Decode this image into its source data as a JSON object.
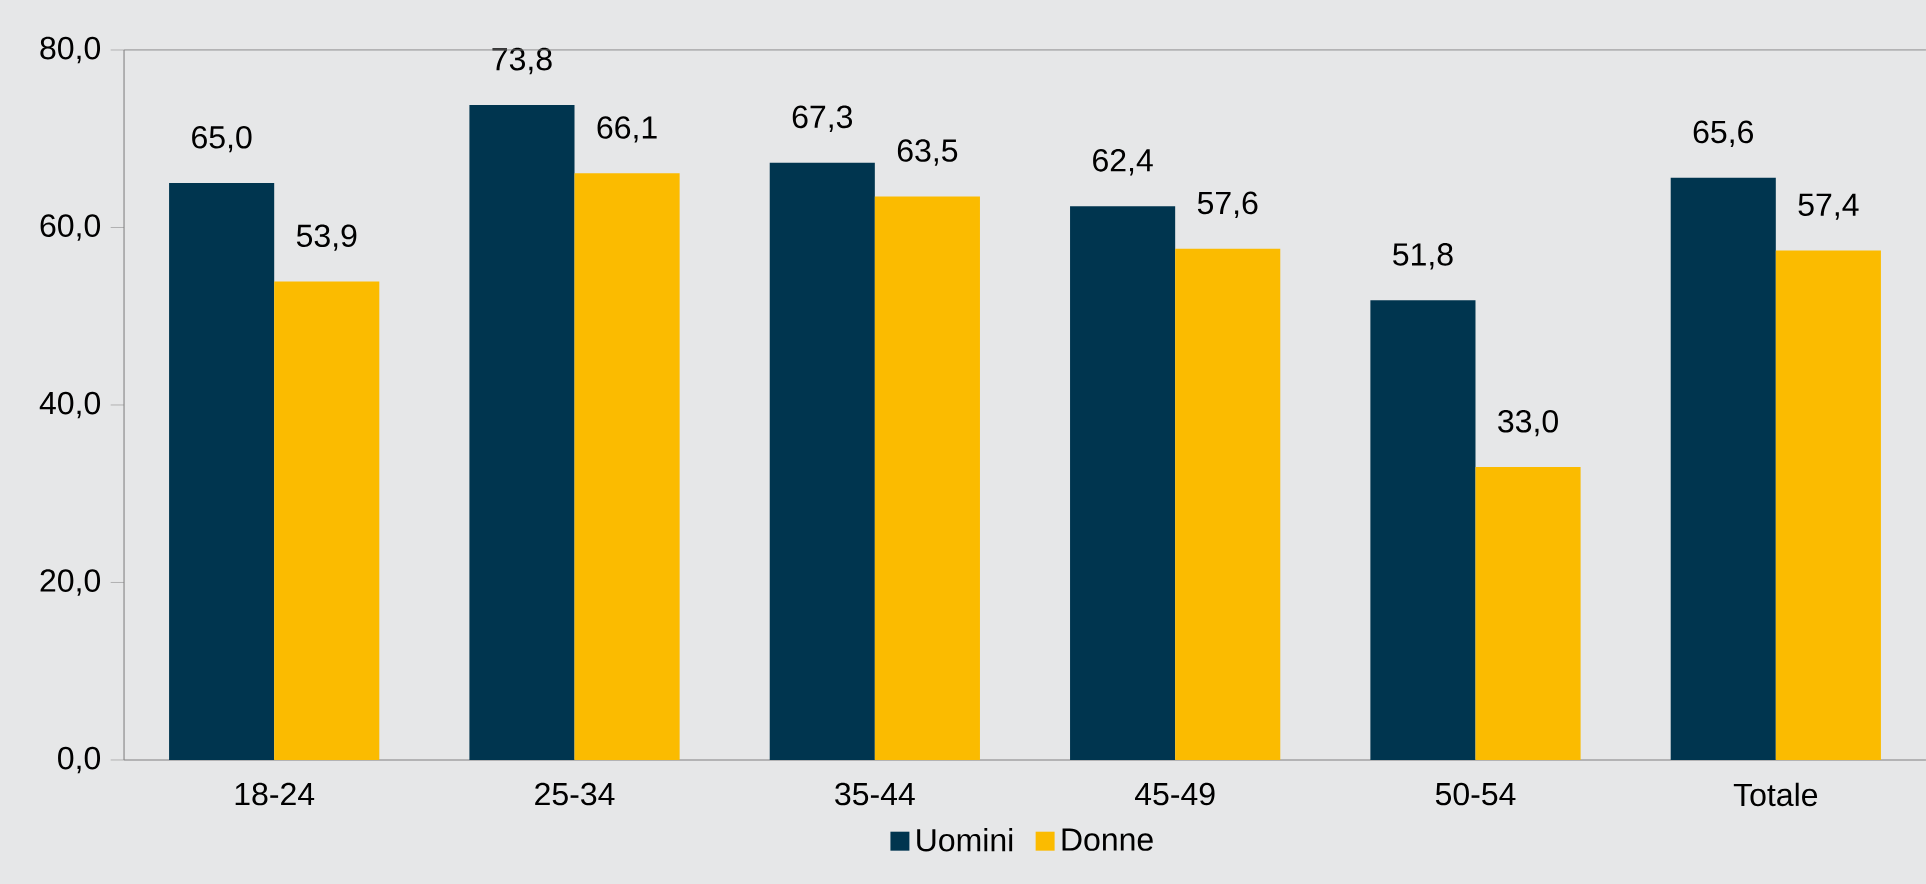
{
  "chart_data": {
    "type": "bar",
    "categories": [
      "18-24",
      "25-34",
      "35-44",
      "45-49",
      "50-54",
      "Totale"
    ],
    "series": [
      {
        "name": "Uomini",
        "color": "#00354f",
        "values": [
          65.0,
          73.8,
          67.3,
          62.4,
          51.8,
          65.6
        ],
        "value_labels": [
          "65,0",
          "73,8",
          "67,3",
          "62,4",
          "51,8",
          "65,6"
        ]
      },
      {
        "name": "Donne",
        "color": "#fbbb00",
        "values": [
          53.9,
          66.1,
          63.5,
          57.6,
          33.0,
          57.4
        ],
        "value_labels": [
          "53,9",
          "66,1",
          "63,5",
          "57,6",
          "33,0",
          "57,4"
        ]
      }
    ],
    "ylim": [
      0,
      80
    ],
    "yticks": [
      {
        "value": 0,
        "label": "0,0"
      },
      {
        "value": 20,
        "label": "20,0"
      },
      {
        "value": 40,
        "label": "40,0"
      },
      {
        "value": 60,
        "label": "60,0"
      },
      {
        "value": 80,
        "label": "80,0"
      }
    ],
    "legend": "bottom",
    "grid": false
  }
}
